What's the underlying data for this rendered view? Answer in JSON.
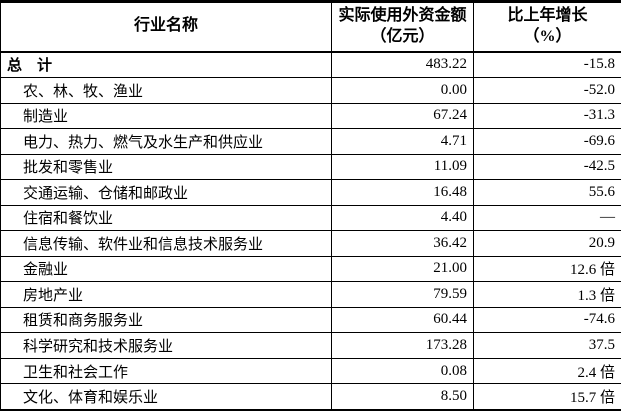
{
  "table": {
    "header": {
      "col1": "行业名称",
      "col2_line1": "实际使用外资金额",
      "col2_line2": "（亿元）",
      "col3_line1": "比上年增长",
      "col3_line2": "（%）"
    },
    "rows": [
      {
        "name": "总　计",
        "amount": "483.22",
        "growth": "-15.8"
      },
      {
        "name": "农、林、牧、渔业",
        "amount": "0.00",
        "growth": "-52.0"
      },
      {
        "name": "制造业",
        "amount": "67.24",
        "growth": "-31.3"
      },
      {
        "name": "电力、热力、燃气及水生产和供应业",
        "amount": "4.71",
        "growth": "-69.6"
      },
      {
        "name": "批发和零售业",
        "amount": "11.09",
        "growth": "-42.5"
      },
      {
        "name": "交通运输、仓储和邮政业",
        "amount": "16.48",
        "growth": "55.6"
      },
      {
        "name": "住宿和餐饮业",
        "amount": "4.40",
        "growth": "—"
      },
      {
        "name": "信息传输、软件业和信息技术服务业",
        "amount": "36.42",
        "growth": "20.9"
      },
      {
        "name": "金融业",
        "amount": "21.00",
        "growth": "12.6 倍"
      },
      {
        "name": "房地产业",
        "amount": "79.59",
        "growth": "1.3 倍"
      },
      {
        "name": "租赁和商务服务业",
        "amount": "60.44",
        "growth": "-74.6"
      },
      {
        "name": "科学研究和技术服务业",
        "amount": "173.28",
        "growth": "37.5"
      },
      {
        "name": "卫生和社会工作",
        "amount": "0.08",
        "growth": "2.4 倍"
      },
      {
        "name": "文化、体育和娱乐业",
        "amount": "8.50",
        "growth": "15.7 倍"
      }
    ]
  }
}
